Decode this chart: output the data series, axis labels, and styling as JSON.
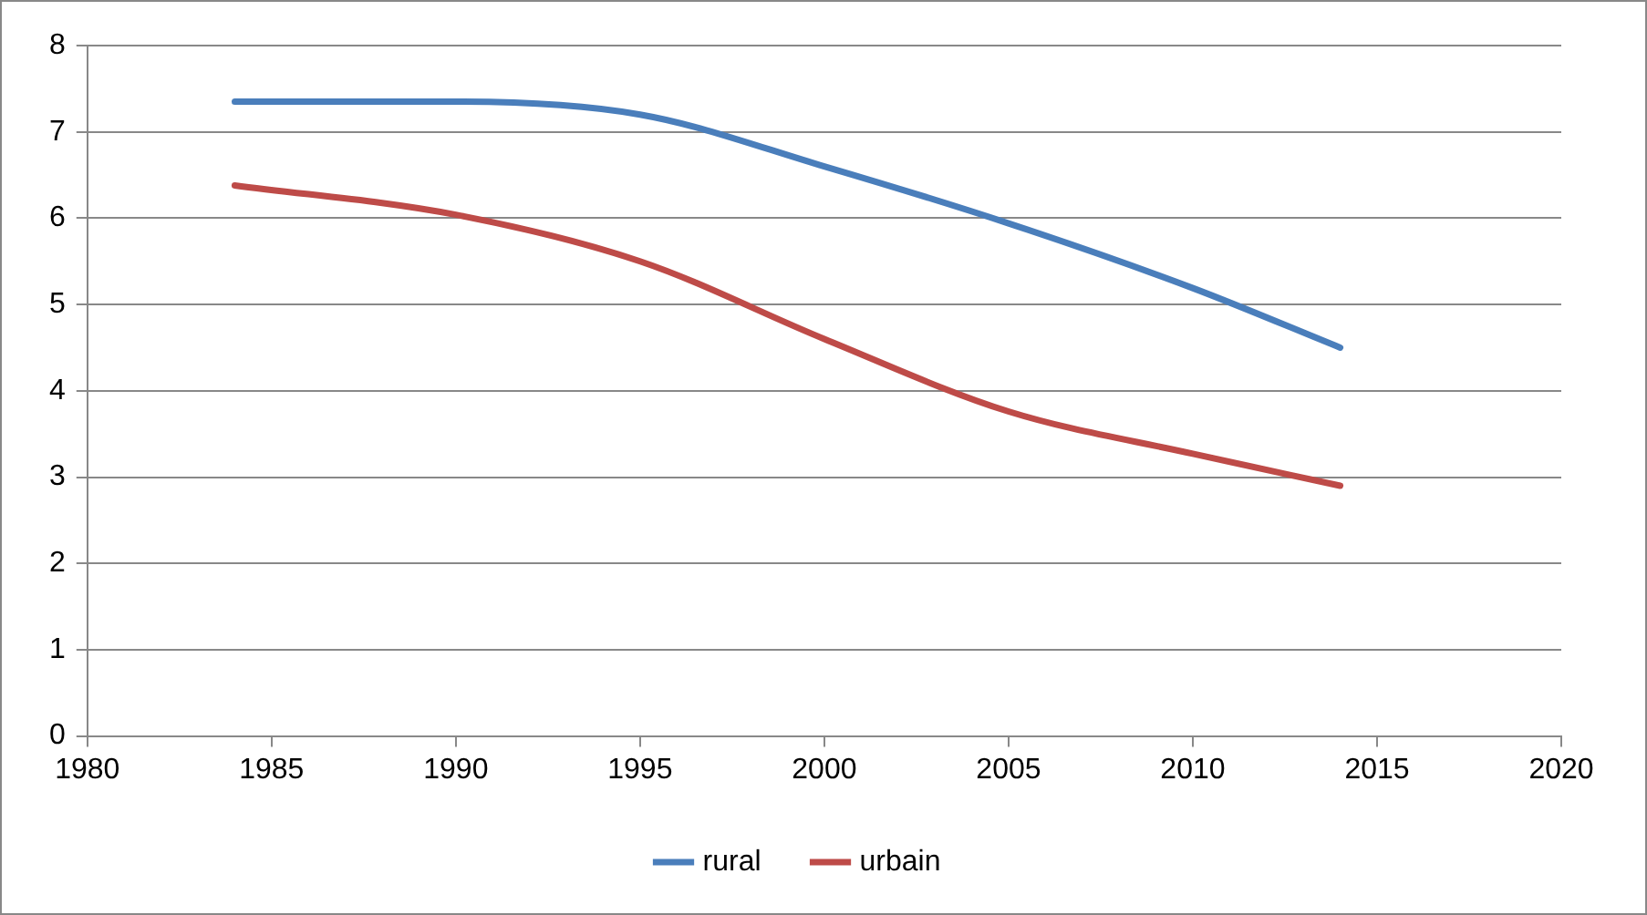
{
  "chart_data": {
    "type": "line",
    "x": [
      1984,
      1990,
      1995,
      2000,
      2005,
      2010,
      2014
    ],
    "series": [
      {
        "name": "rural",
        "color": "#4a7ebb",
        "values": [
          7.35,
          7.35,
          7.2,
          6.6,
          5.94,
          5.19,
          4.5
        ]
      },
      {
        "name": "urbain",
        "color": "#be4b48",
        "values": [
          6.38,
          6.04,
          5.5,
          4.6,
          3.76,
          3.27,
          2.9
        ]
      }
    ],
    "xlim": [
      1980,
      2020
    ],
    "xticks": [
      1980,
      1985,
      1990,
      1995,
      2000,
      2005,
      2010,
      2015,
      2020
    ],
    "ylim": [
      0,
      8
    ],
    "yticks": [
      0,
      1,
      2,
      3,
      4,
      5,
      6,
      7,
      8
    ],
    "grid": "y",
    "legend": "bottom",
    "marker": "none",
    "line_style": "solid"
  }
}
